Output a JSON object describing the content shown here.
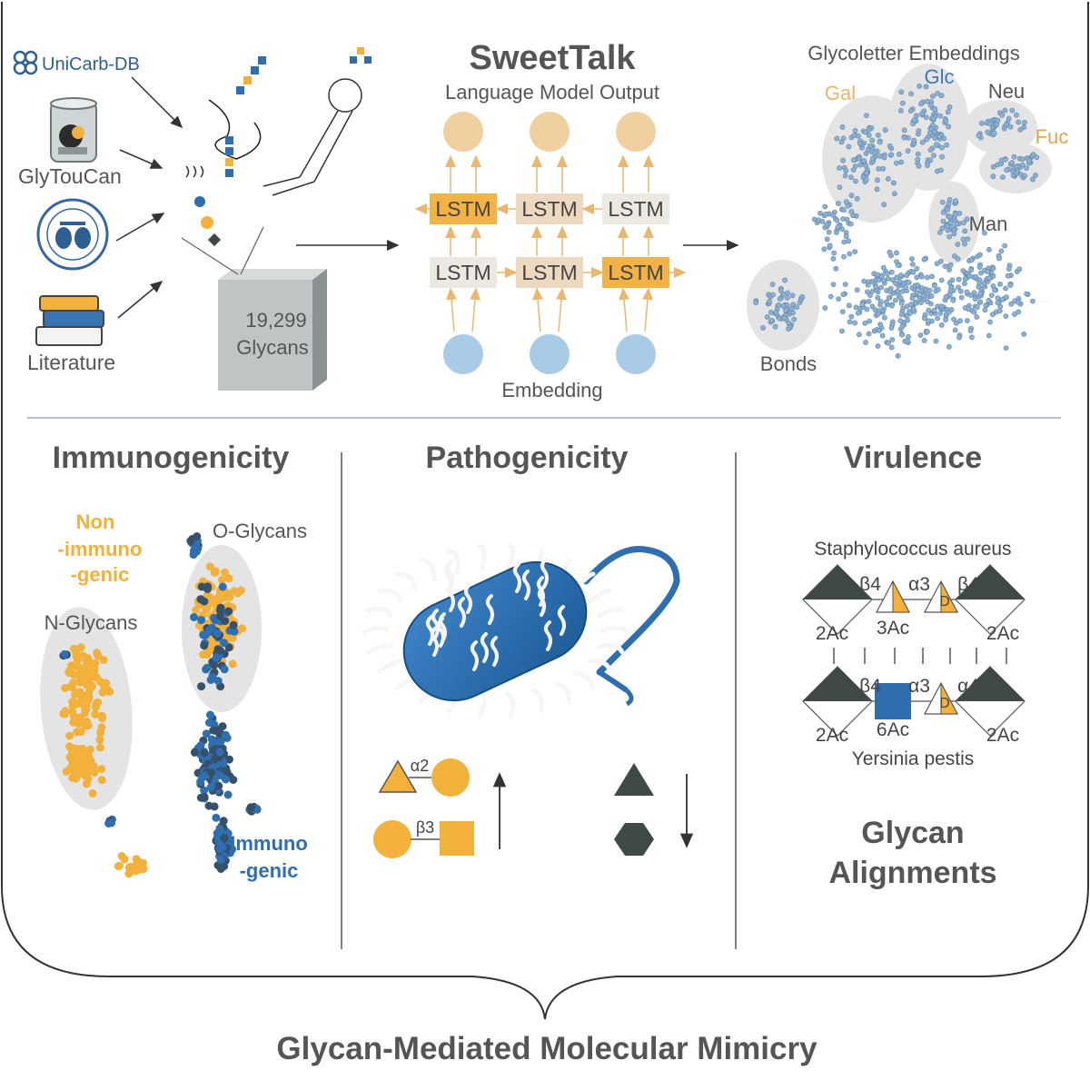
{
  "sources": {
    "unicarb": "UniCarb-DB",
    "glytoucan": "GlyTouCan",
    "literature": "Literature",
    "csdb_badge": "Carbohydrate Structure Database"
  },
  "glycan_box": {
    "count": "19,299",
    "label": "Glycans"
  },
  "model": {
    "title": "SweetTalk",
    "output_label": "Language Model Output",
    "embedding_label": "Embedding",
    "lstm_label": "LSTM"
  },
  "embeddings": {
    "title": "Glycoletter Embeddings",
    "clusters": {
      "gal": "Gal",
      "glc": "Glc",
      "neu": "Neu",
      "fuc": "Fuc",
      "man": "Man",
      "bonds": "Bonds"
    }
  },
  "immunogenicity": {
    "title": "Immunogenicity",
    "non_immunogenic": [
      "Non",
      "-immuno",
      "-genic"
    ],
    "immunogenic": [
      "Immuno",
      "-genic"
    ],
    "n_glycans": "N-Glycans",
    "o_glycans": "O-Glycans"
  },
  "pathogenicity": {
    "title": "Pathogenicity",
    "bond_a": "α2",
    "bond_b": "β3"
  },
  "virulence": {
    "title": "Virulence",
    "organism_top": "Staphylococcus aureus",
    "organism_bottom": "Yersinia pestis",
    "top_bonds": [
      "β4",
      "α3",
      "β4"
    ],
    "top_mods": [
      "2Ac",
      "3Ac",
      "2Ac"
    ],
    "bottom_bonds": [
      "β4",
      "α3",
      "α4"
    ],
    "bottom_mods": [
      "2Ac",
      "6Ac",
      "2Ac"
    ],
    "d_label": "D",
    "alignment_title": [
      "Glycan",
      "Alignments"
    ]
  },
  "footer": {
    "title": "Glycan-Mediated Molecular Mimicry"
  },
  "colors": {
    "orange": "#f2b13a",
    "blue": "#2f6fb0",
    "light_blue": "#a9cbe8",
    "peach": "#f0d0a0",
    "lstm_strong": "#f3b245",
    "dark": "#3f4a48",
    "grey_ellipse": "#e4e4e4"
  }
}
